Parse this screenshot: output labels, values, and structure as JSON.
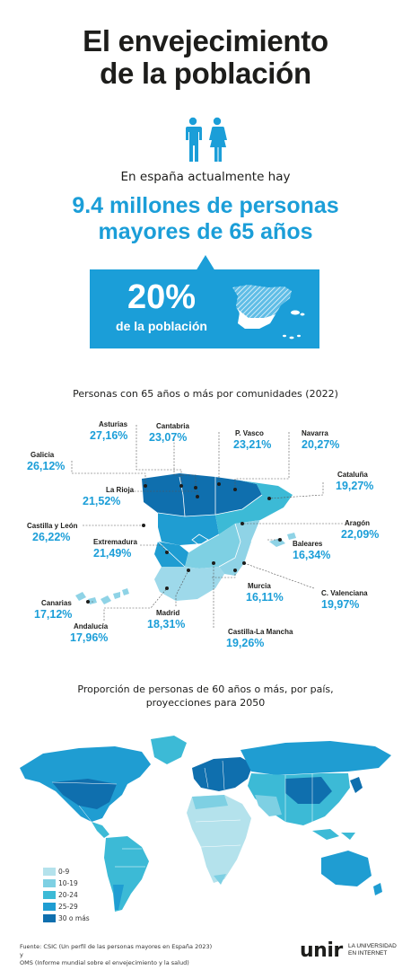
{
  "header": {
    "title_line1": "El envejecimiento",
    "title_line2": "de la población"
  },
  "intro": {
    "text": "En españa actualmente hay",
    "headline_line1": "9.4 millones de personas",
    "headline_line2": "mayores de 65 años"
  },
  "callout": {
    "percent": "20%",
    "label": "de la población"
  },
  "regions_section": {
    "title": "Personas con 65 años o más por comunidades (2022)",
    "regions": [
      {
        "name": "Asturias",
        "value": "27,16%"
      },
      {
        "name": "Cantabria",
        "value": "23,07%"
      },
      {
        "name": "P. Vasco",
        "value": "23,21%"
      },
      {
        "name": "Navarra",
        "value": "20,27%"
      },
      {
        "name": "Galicia",
        "value": "26,12%"
      },
      {
        "name": "Cataluña",
        "value": "19,27%"
      },
      {
        "name": "La Rioja",
        "value": "21,52%"
      },
      {
        "name": "Castilla y León",
        "value": "26,22%"
      },
      {
        "name": "Aragón",
        "value": "22,09%"
      },
      {
        "name": "Extremadura",
        "value": "21,49%"
      },
      {
        "name": "Baleares",
        "value": "16,34%"
      },
      {
        "name": "Canarias",
        "value": "17,12%"
      },
      {
        "name": "Murcia",
        "value": "16,11%"
      },
      {
        "name": "C. Valenciana",
        "value": "19,97%"
      },
      {
        "name": "Madrid",
        "value": "18,31%"
      },
      {
        "name": "Andalucía",
        "value": "17,96%"
      },
      {
        "name": "Castilla-La Mancha",
        "value": "19,26%"
      }
    ]
  },
  "world_section": {
    "title_line1": "Proporción de personas de 60 años o más, por país,",
    "title_line2": "proyecciones para 2050",
    "legend": [
      {
        "label": "0-9",
        "color": "#b4e2ec"
      },
      {
        "label": "10-19",
        "color": "#7ed0e3"
      },
      {
        "label": "20-24",
        "color": "#3cbad6"
      },
      {
        "label": "25-29",
        "color": "#1f9dd2"
      },
      {
        "label": "30 o más",
        "color": "#0f6fae"
      }
    ]
  },
  "footer": {
    "source_line1": "Fuente: CSIC (Un perfil de las personas mayores en España 2023) y",
    "source_line2": "OMS (Informe mundial sobre el envejecimiento y la salud)",
    "logo": "unir",
    "tagline_line1": "LA UNIVERSIDAD",
    "tagline_line2": "EN INTERNET"
  },
  "colors": {
    "accent": "#1b9ed8",
    "dark_blue": "#0f6fae",
    "light_blue": "#8fd3e6"
  },
  "icons": [
    "man-icon",
    "woman-icon",
    "spain-map-icon"
  ]
}
